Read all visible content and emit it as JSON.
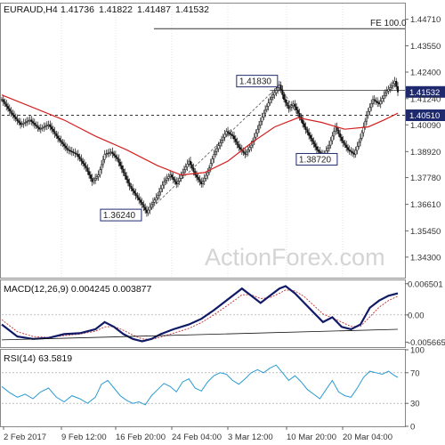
{
  "chart_data": [
    {
      "type": "candlestick",
      "title": "EURAUD,H4",
      "ohlc_readout": [
        "1.41736",
        "1.41822",
        "1.41487",
        "1.41532"
      ],
      "ylim": [
        1.334,
        1.454
      ],
      "y_ticks": [
        "1.44710",
        "1.43550",
        "1.42400",
        "1.41240",
        "1.40090",
        "1.38920",
        "1.37780",
        "1.36610",
        "1.35450",
        "1.34300"
      ],
      "x_ticks": [
        "2 Feb 2017",
        "9 Feb 12:00",
        "16 Feb 20:00",
        "24 Feb 04:00",
        "3 Mar 12:00",
        "10 Mar 20:00",
        "20 Mar 04:00"
      ],
      "close_path": [
        [
          0,
          1.412
        ],
        [
          6,
          1.406
        ],
        [
          12,
          1.401
        ],
        [
          18,
          1.403
        ],
        [
          24,
          1.399
        ],
        [
          30,
          1.401
        ],
        [
          36,
          1.395
        ],
        [
          42,
          1.39
        ],
        [
          48,
          1.388
        ],
        [
          54,
          1.382
        ],
        [
          58,
          1.376
        ],
        [
          62,
          1.379
        ],
        [
          66,
          1.388
        ],
        [
          70,
          1.389
        ],
        [
          74,
          1.386
        ],
        [
          78,
          1.38
        ],
        [
          82,
          1.374
        ],
        [
          86,
          1.37
        ],
        [
          90,
          1.366
        ],
        [
          93,
          1.3624
        ],
        [
          96,
          1.366
        ],
        [
          100,
          1.37
        ],
        [
          104,
          1.376
        ],
        [
          108,
          1.379
        ],
        [
          112,
          1.375
        ],
        [
          116,
          1.38
        ],
        [
          120,
          1.385
        ],
        [
          124,
          1.379
        ],
        [
          128,
          1.375
        ],
        [
          132,
          1.38
        ],
        [
          136,
          1.388
        ],
        [
          140,
          1.393
        ],
        [
          144,
          1.398
        ],
        [
          148,
          1.396
        ],
        [
          152,
          1.391
        ],
        [
          156,
          1.388
        ],
        [
          160,
          1.392
        ],
        [
          164,
          1.399
        ],
        [
          168,
          1.406
        ],
        [
          172,
          1.412
        ],
        [
          176,
          1.416
        ],
        [
          178,
          1.4183
        ],
        [
          181,
          1.412
        ],
        [
          184,
          1.408
        ],
        [
          187,
          1.41
        ],
        [
          190,
          1.406
        ],
        [
          194,
          1.4
        ],
        [
          198,
          1.395
        ],
        [
          202,
          1.39
        ],
        [
          206,
          1.3872
        ],
        [
          210,
          1.392
        ],
        [
          214,
          1.4
        ],
        [
          218,
          1.394
        ],
        [
          222,
          1.39
        ],
        [
          226,
          1.388
        ],
        [
          230,
          1.395
        ],
        [
          234,
          1.405
        ],
        [
          238,
          1.412
        ],
        [
          242,
          1.41
        ],
        [
          246,
          1.415
        ],
        [
          250,
          1.418
        ],
        [
          252,
          1.42
        ],
        [
          254,
          1.4153
        ]
      ],
      "moving_average": [
        [
          0,
          1.414
        ],
        [
          40,
          1.403
        ],
        [
          60,
          1.396
        ],
        [
          80,
          1.39
        ],
        [
          100,
          1.383
        ],
        [
          115,
          1.379
        ],
        [
          130,
          1.38
        ],
        [
          145,
          1.385
        ],
        [
          160,
          1.393
        ],
        [
          175,
          1.4
        ],
        [
          190,
          1.404
        ],
        [
          205,
          1.402
        ],
        [
          220,
          1.399
        ],
        [
          235,
          1.4
        ],
        [
          245,
          1.403
        ],
        [
          254,
          1.406
        ]
      ],
      "swing_labels": [
        {
          "label": "1.36240",
          "x": 93,
          "y": 1.3624
        },
        {
          "label": "1.41830",
          "x": 178,
          "y": 1.4183
        },
        {
          "label": "1.38720",
          "x": 206,
          "y": 1.3872
        }
      ],
      "level_lines": [
        {
          "label": "FE 100.0",
          "y": 1.443
        },
        {
          "label": "1.40510",
          "y": 1.4051
        }
      ],
      "price_tags": [
        "1.41532",
        "1.40510"
      ],
      "watermark": "ActionForex.com"
    },
    {
      "type": "line",
      "title": "MACD(12,26,9) 0.004245 0.003877",
      "ylim": [
        -0.0067,
        0.0072
      ],
      "y_ticks": [
        "0.006501",
        "0.00",
        "-0.005665"
      ],
      "macd": [
        [
          0,
          -0.002
        ],
        [
          10,
          -0.0045
        ],
        [
          20,
          -0.005
        ],
        [
          30,
          -0.0048
        ],
        [
          40,
          -0.004
        ],
        [
          50,
          -0.0038
        ],
        [
          60,
          -0.003
        ],
        [
          66,
          -0.0015
        ],
        [
          72,
          -0.0025
        ],
        [
          78,
          -0.004
        ],
        [
          84,
          -0.005
        ],
        [
          90,
          -0.0055
        ],
        [
          96,
          -0.005
        ],
        [
          102,
          -0.004
        ],
        [
          110,
          -0.003
        ],
        [
          120,
          -0.002
        ],
        [
          128,
          -0.0008
        ],
        [
          136,
          0.001
        ],
        [
          144,
          0.003
        ],
        [
          150,
          0.0045
        ],
        [
          154,
          0.0055
        ],
        [
          160,
          0.004
        ],
        [
          166,
          0.0025
        ],
        [
          172,
          0.004
        ],
        [
          178,
          0.0055
        ],
        [
          182,
          0.006
        ],
        [
          188,
          0.0045
        ],
        [
          194,
          0.0025
        ],
        [
          200,
          0.0005
        ],
        [
          206,
          -0.0015
        ],
        [
          212,
          -0.0005
        ],
        [
          218,
          -0.0025
        ],
        [
          224,
          -0.003
        ],
        [
          230,
          -0.002
        ],
        [
          236,
          0.0015
        ],
        [
          242,
          0.003
        ],
        [
          248,
          0.004
        ],
        [
          254,
          0.0045
        ]
      ],
      "signal": [
        [
          0,
          -0.001
        ],
        [
          10,
          -0.0035
        ],
        [
          20,
          -0.0045
        ],
        [
          30,
          -0.0047
        ],
        [
          40,
          -0.0043
        ],
        [
          50,
          -0.004
        ],
        [
          60,
          -0.0034
        ],
        [
          66,
          -0.0025
        ],
        [
          72,
          -0.0024
        ],
        [
          78,
          -0.0032
        ],
        [
          84,
          -0.0042
        ],
        [
          90,
          -0.005
        ],
        [
          96,
          -0.0051
        ],
        [
          102,
          -0.0046
        ],
        [
          110,
          -0.0038
        ],
        [
          120,
          -0.0028
        ],
        [
          128,
          -0.0016
        ],
        [
          136,
          0.0
        ],
        [
          144,
          0.0018
        ],
        [
          150,
          0.0032
        ],
        [
          154,
          0.0042
        ],
        [
          160,
          0.0042
        ],
        [
          166,
          0.0034
        ],
        [
          172,
          0.0036
        ],
        [
          178,
          0.0045
        ],
        [
          182,
          0.0052
        ],
        [
          188,
          0.005
        ],
        [
          194,
          0.0038
        ],
        [
          200,
          0.002
        ],
        [
          206,
          0.0002
        ],
        [
          212,
          -0.0006
        ],
        [
          218,
          -0.0015
        ],
        [
          224,
          -0.0024
        ],
        [
          230,
          -0.0024
        ],
        [
          236,
          -0.0004
        ],
        [
          242,
          0.0016
        ],
        [
          248,
          0.003
        ],
        [
          254,
          0.0039
        ]
      ],
      "trendline": [
        [
          0,
          -0.0052
        ],
        [
          254,
          -0.003
        ]
      ]
    },
    {
      "type": "line",
      "title": "RSI(14) 63.5819",
      "ylim": [
        0,
        100
      ],
      "y_ticks": [
        "100",
        "70",
        "30",
        "0"
      ],
      "levels": [
        70,
        30
      ],
      "rsi": [
        [
          0,
          52
        ],
        [
          5,
          44
        ],
        [
          10,
          38
        ],
        [
          15,
          42
        ],
        [
          20,
          36
        ],
        [
          25,
          45
        ],
        [
          30,
          50
        ],
        [
          35,
          38
        ],
        [
          40,
          32
        ],
        [
          45,
          40
        ],
        [
          50,
          36
        ],
        [
          55,
          30
        ],
        [
          60,
          38
        ],
        [
          64,
          55
        ],
        [
          68,
          60
        ],
        [
          72,
          50
        ],
        [
          76,
          40
        ],
        [
          80,
          34
        ],
        [
          84,
          30
        ],
        [
          88,
          32
        ],
        [
          92,
          28
        ],
        [
          96,
          40
        ],
        [
          100,
          48
        ],
        [
          104,
          56
        ],
        [
          108,
          52
        ],
        [
          112,
          45
        ],
        [
          116,
          58
        ],
        [
          120,
          62
        ],
        [
          124,
          50
        ],
        [
          128,
          46
        ],
        [
          132,
          58
        ],
        [
          136,
          66
        ],
        [
          140,
          70
        ],
        [
          144,
          68
        ],
        [
          148,
          60
        ],
        [
          152,
          55
        ],
        [
          156,
          62
        ],
        [
          160,
          70
        ],
        [
          164,
          74
        ],
        [
          168,
          70
        ],
        [
          172,
          76
        ],
        [
          176,
          80
        ],
        [
          180,
          70
        ],
        [
          184,
          60
        ],
        [
          188,
          66
        ],
        [
          192,
          58
        ],
        [
          196,
          48
        ],
        [
          200,
          42
        ],
        [
          204,
          36
        ],
        [
          208,
          48
        ],
        [
          212,
          60
        ],
        [
          216,
          45
        ],
        [
          220,
          40
        ],
        [
          224,
          38
        ],
        [
          228,
          50
        ],
        [
          232,
          64
        ],
        [
          236,
          72
        ],
        [
          240,
          70
        ],
        [
          244,
          68
        ],
        [
          248,
          72
        ],
        [
          252,
          66
        ],
        [
          254,
          64
        ]
      ]
    }
  ]
}
